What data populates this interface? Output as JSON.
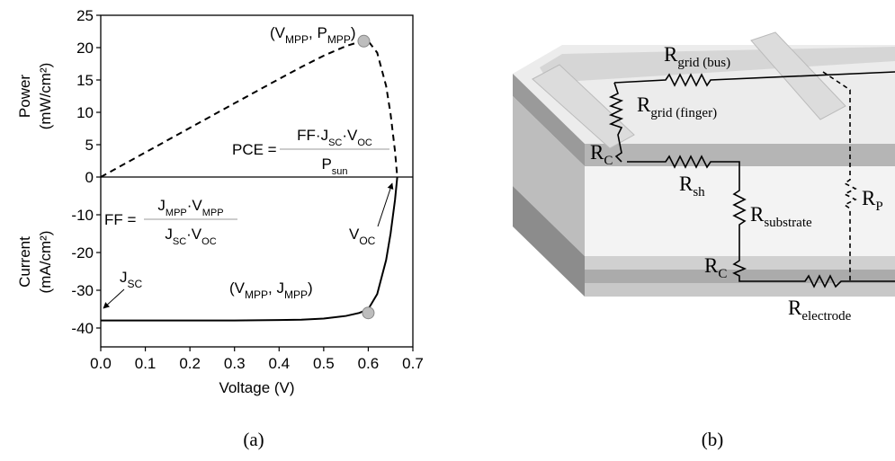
{
  "chart_data": [
    {
      "type": "line",
      "ylabel": [
        "Power",
        "(mW/cm²)"
      ],
      "xlim": [
        0,
        0.7
      ],
      "ylim": [
        0,
        25
      ],
      "yticks": [
        0,
        5,
        10,
        15,
        20,
        25
      ],
      "x": [
        0,
        0.1,
        0.2,
        0.3,
        0.4,
        0.45,
        0.5,
        0.55,
        0.58,
        0.6,
        0.62,
        0.64,
        0.65,
        0.66,
        0.665
      ],
      "series": [
        {
          "color": "#000000",
          "dashed": true,
          "values": [
            0,
            3.8,
            7.6,
            11.4,
            15.16,
            17.01,
            18.75,
            20.24,
            20.88,
            21,
            19.22,
            14.08,
            9.75,
            3.96,
            0
          ]
        }
      ],
      "points": [
        {
          "x": 0.59,
          "value": 21,
          "color": "#bdbdbd"
        }
      ],
      "annotations": [
        [
          "(V",
          {
            "sub": "MPP"
          },
          ", P",
          {
            "sub": "MPP"
          },
          ")"
        ]
      ],
      "equation": {
        "lhs": "PCE =",
        "numerator": [
          "FF·J",
          {
            "sub": "SC"
          },
          "·V",
          {
            "sub": "OC"
          }
        ],
        "denominator": [
          "P",
          {
            "sub": "sun"
          }
        ]
      }
    },
    {
      "type": "line",
      "ylabel": [
        "Current",
        "(mA/cm²)"
      ],
      "xlabel": "Voltage (V)",
      "xlim": [
        0,
        0.7
      ],
      "ylim": [
        -45,
        0
      ],
      "yticks": [
        -40,
        -30,
        -20,
        -10
      ],
      "xticks": [
        {
          "value": 0,
          "label": "0.0"
        },
        {
          "value": 0.1,
          "label": "0.1"
        },
        {
          "value": 0.2,
          "label": "0.2"
        },
        {
          "value": 0.3,
          "label": "0.3"
        },
        {
          "value": 0.4,
          "label": "0.4"
        },
        {
          "value": 0.5,
          "label": "0.5"
        },
        {
          "value": 0.6,
          "label": "0.6"
        },
        {
          "value": 0.7,
          "label": "0.7"
        }
      ],
      "x": [
        0,
        0.1,
        0.2,
        0.3,
        0.4,
        0.45,
        0.5,
        0.55,
        0.58,
        0.6,
        0.62,
        0.64,
        0.65,
        0.66,
        0.665
      ],
      "series": [
        {
          "color": "#000000",
          "dashed": false,
          "values": [
            -38,
            -38,
            -38,
            -38,
            -37.9,
            -37.8,
            -37.5,
            -36.8,
            -36,
            -35,
            -31,
            -22,
            -15,
            -6,
            0
          ]
        }
      ],
      "points": [
        {
          "x": 0.6,
          "value": -36,
          "color": "#bdbdbd"
        }
      ],
      "annotations": [
        [
          "V",
          {
            "sub": "OC"
          }
        ],
        [
          "J",
          {
            "sub": "SC"
          }
        ],
        [
          "(V",
          {
            "sub": "MPP"
          },
          ", J",
          {
            "sub": "MPP"
          },
          ")"
        ]
      ],
      "equation": {
        "lhs": "FF =",
        "numerator": [
          "J",
          {
            "sub": "MPP"
          },
          "·V",
          {
            "sub": "MPP"
          }
        ],
        "denominator": [
          "J",
          {
            "sub": "SC"
          },
          "·V",
          {
            "sub": "OC"
          }
        ]
      }
    }
  ],
  "diagram": {
    "labels": [
      [
        "R",
        {
          "sub": "grid (bus)"
        }
      ],
      [
        "R",
        {
          "sub": "grid (finger)"
        }
      ],
      [
        "R",
        {
          "sub": "C"
        }
      ],
      [
        "R",
        {
          "sub": "sh"
        }
      ],
      [
        "R",
        {
          "sub": "substrate"
        }
      ],
      [
        "R",
        {
          "sub": "P"
        }
      ],
      [
        "R",
        {
          "sub": "C"
        }
      ],
      [
        "R",
        {
          "sub": "electrode"
        }
      ]
    ]
  },
  "captions": [
    "(a)",
    "(b)"
  ]
}
